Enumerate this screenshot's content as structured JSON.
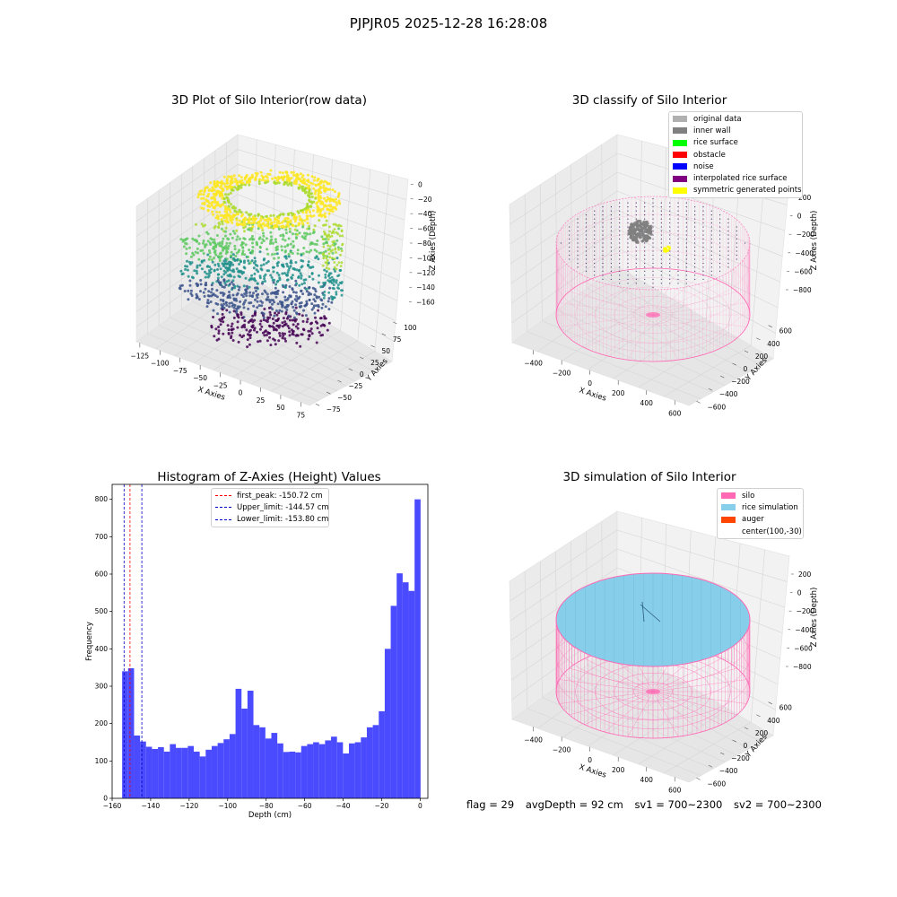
{
  "suptitle": "PJPJR05 2025-12-28 16:28:08",
  "colors": {
    "silo": "#ff69b4",
    "rice_simulation": "#87ceeb",
    "auger": "#ff4500",
    "original": "#b0b0b0",
    "inner_wall": "#808080",
    "rice_surface": "#00ff00",
    "obstacle": "#ff0000",
    "noise": "#0000ff",
    "interpolated": "#800080",
    "symmetric": "#ffff00",
    "hist": "#4a4aff",
    "first_peak_line": "#ff0000",
    "limit_line": "#0000cc"
  },
  "chart_data": [
    {
      "type": "scatter",
      "title": "3D Plot of Silo Interior(row data)",
      "xlabel": "X Axies",
      "ylabel": "Y Axies",
      "zlabel": "Z Axies (Depth)",
      "x_ticks": [
        "−125",
        "−100",
        "−75",
        "−50",
        "−25",
        "0",
        "25",
        "50",
        "75"
      ],
      "y_ticks": [
        "−75",
        "−50",
        "−25",
        "0",
        "25",
        "50",
        "75",
        "100"
      ],
      "z_ticks": [
        "0",
        "−20",
        "−40",
        "−60",
        "−80",
        "−100",
        "−120",
        "−140",
        "−160"
      ],
      "colormap": "viridis"
    },
    {
      "type": "scatter",
      "title": "3D classify of Silo Interior",
      "xlabel": "X Axies",
      "ylabel": "Y Axies",
      "zlabel": "Z Axies (Depth)",
      "x_ticks": [
        "−400",
        "−200",
        "0",
        "200",
        "400",
        "600"
      ],
      "y_ticks": [
        "−600",
        "−400",
        "−200",
        "0",
        "200",
        "400",
        "600"
      ],
      "z_ticks": [
        "200",
        "0",
        "−200",
        "−400",
        "−600",
        "−800"
      ],
      "legend": [
        "original data",
        "inner wall",
        "rice surface",
        "obstacle",
        "noise",
        "interpolated rice surface",
        "symmetric generated points"
      ]
    },
    {
      "type": "bar",
      "title": "Histogram of Z-Axies (Height) Values",
      "xlabel": "Depth (cm)",
      "ylabel": "Frequency",
      "xlim": [
        -160,
        4
      ],
      "ylim": [
        0,
        840
      ],
      "x_ticks": [
        -160,
        -140,
        -120,
        -100,
        -80,
        -60,
        -40,
        -20,
        0
      ],
      "x_tick_labels": [
        "−160",
        "−140",
        "−120",
        "−100",
        "−80",
        "−60",
        "−40",
        "−20",
        "0"
      ],
      "y_ticks": [
        0,
        100,
        200,
        300,
        400,
        500,
        600,
        700,
        800
      ],
      "bin_start": -154.8,
      "bin_width": 3.1,
      "values": [
        340,
        348,
        168,
        152,
        138,
        132,
        137,
        125,
        145,
        135,
        135,
        140,
        125,
        112,
        130,
        140,
        148,
        158,
        172,
        293,
        240,
        288,
        196,
        190,
        160,
        175,
        147,
        124,
        125,
        123,
        140,
        145,
        150,
        145,
        155,
        165,
        150,
        120,
        147,
        150,
        163,
        190,
        196,
        233,
        400,
        515,
        602,
        578,
        555,
        800
      ],
      "lines": [
        {
          "label": "first_peak: -150.72 cm",
          "x": -150.72,
          "color": "#ff0000"
        },
        {
          "label": "Upper_limit: -144.57 cm",
          "x": -144.57,
          "color": "#0000cc"
        },
        {
          "label": "Lower_limit: -153.80 cm",
          "x": -153.8,
          "color": "#0000cc"
        }
      ]
    },
    {
      "type": "scatter",
      "title": "3D simulation of Silo Interior",
      "xlabel": "X Axies",
      "ylabel": "Y Axies",
      "zlabel": "Z Axies (Depth)",
      "x_ticks": [
        "−400",
        "−200",
        "0",
        "200",
        "400",
        "600"
      ],
      "y_ticks": [
        "−600",
        "−400",
        "−200",
        "0",
        "200",
        "400",
        "600"
      ],
      "z_ticks": [
        "200",
        "0",
        "−200",
        "−400",
        "−600",
        "−800"
      ],
      "legend": [
        "silo",
        "rice simulation",
        "auger",
        "center(100,-30)"
      ]
    }
  ],
  "footer": {
    "flag": "flag = 29",
    "avg_depth": "avgDepth = 92 cm",
    "sv1": "sv1 = 700~2300",
    "sv2": "sv2 = 700~2300"
  }
}
